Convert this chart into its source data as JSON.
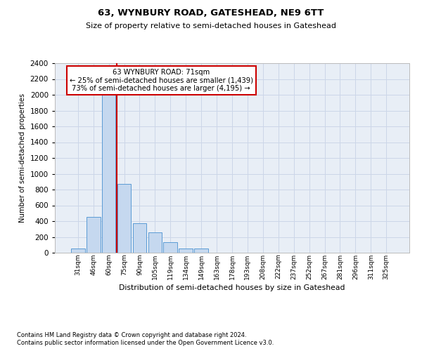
{
  "title1": "63, WYNBURY ROAD, GATESHEAD, NE9 6TT",
  "title2": "Size of property relative to semi-detached houses in Gateshead",
  "xlabel": "Distribution of semi-detached houses by size in Gateshead",
  "ylabel": "Number of semi-detached properties",
  "annotation_line1": "63 WYNBURY ROAD: 71sqm",
  "annotation_line2": "← 25% of semi-detached houses are smaller (1,439)",
  "annotation_line3": "73% of semi-detached houses are larger (4,195) →",
  "categories": [
    "31sqm",
    "46sqm",
    "60sqm",
    "75sqm",
    "90sqm",
    "105sqm",
    "119sqm",
    "134sqm",
    "149sqm",
    "163sqm",
    "178sqm",
    "193sqm",
    "208sqm",
    "222sqm",
    "237sqm",
    "252sqm",
    "267sqm",
    "281sqm",
    "296sqm",
    "311sqm",
    "325sqm"
  ],
  "values": [
    50,
    450,
    2000,
    870,
    375,
    255,
    130,
    55,
    55,
    0,
    0,
    0,
    0,
    0,
    0,
    0,
    0,
    0,
    0,
    0,
    0
  ],
  "bar_color": "#c5d8ef",
  "bar_edge_color": "#5b9bd5",
  "vline_color": "#cc0000",
  "vline_x": 2.5,
  "annotation_box_color": "#ffffff",
  "annotation_box_edge_color": "#cc0000",
  "ylim_max": 2400,
  "yticks": [
    0,
    200,
    400,
    600,
    800,
    1000,
    1200,
    1400,
    1600,
    1800,
    2000,
    2200,
    2400
  ],
  "grid_color": "#ccd6e8",
  "bg_color": "#e8eef6",
  "footer1": "Contains HM Land Registry data © Crown copyright and database right 2024.",
  "footer2": "Contains public sector information licensed under the Open Government Licence v3.0."
}
